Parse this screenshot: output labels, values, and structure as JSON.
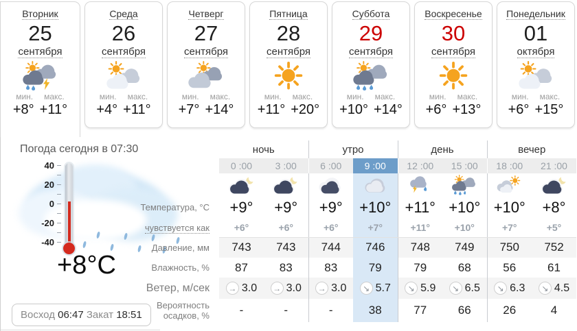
{
  "labels": {
    "min": "мин.",
    "max": "макс."
  },
  "days": [
    {
      "name": "Вторник",
      "date": "25",
      "month": "сентября",
      "icon": "sun-cloud-rain-storm",
      "min": "+8°",
      "max": "+11°"
    },
    {
      "name": "Среда",
      "date": "26",
      "month": "сентября",
      "icon": "sun-clouds",
      "min": "+4°",
      "max": "+11°"
    },
    {
      "name": "Четверг",
      "date": "27",
      "month": "сентября",
      "icon": "sun-behind-clouds",
      "min": "+7°",
      "max": "+14°"
    },
    {
      "name": "Пятница",
      "date": "28",
      "month": "сентября",
      "icon": "sun",
      "min": "+11°",
      "max": "+20°"
    },
    {
      "name": "Суббота",
      "date": "29",
      "month": "сентября",
      "icon": "sun-cloud-rain",
      "min": "+10°",
      "max": "+14°"
    },
    {
      "name": "Воскресенье",
      "date": "30",
      "month": "сентября",
      "icon": "sun",
      "min": "+6°",
      "max": "+13°"
    },
    {
      "name": "Понедельник",
      "date": "01",
      "month": "октября",
      "icon": "sun-clouds",
      "min": "+6°",
      "max": "+15°"
    }
  ],
  "today": {
    "title": "Погода сегодня в 07:30",
    "current_temp": "+8°C",
    "sunrise_label": "Восход",
    "sunrise_time": "06:47",
    "sunset_label": "Закат",
    "sunset_time": "18:51",
    "thermo_ticks": [
      "40",
      "20",
      "0",
      "-20",
      "-40"
    ]
  },
  "table": {
    "periods": [
      "ночь",
      "утро",
      "день",
      "вечер"
    ],
    "rows": {
      "temp": "Температура, °C",
      "feels": "чувствуется как",
      "pressure": "Давление, мм",
      "humidity": "Влажность, %",
      "wind": "Ветер, м/сек",
      "precip_line1": "Вероятность",
      "precip_line2": "осадков, %"
    },
    "hours": [
      {
        "time": "0 :00",
        "icon": "moon-cloud",
        "temp": "+9°",
        "feels": "+6°",
        "pressure": "743",
        "humidity": "87",
        "wind_dir": "→",
        "wind": "3.0",
        "precip": "-"
      },
      {
        "time": "3 :00",
        "icon": "moon-cloud",
        "temp": "+9°",
        "feels": "+6°",
        "pressure": "743",
        "humidity": "83",
        "wind_dir": "→",
        "wind": "3.0",
        "precip": "-"
      },
      {
        "time": "6 :00",
        "icon": "dark-cloud",
        "temp": "+9°",
        "feels": "+6°",
        "pressure": "744",
        "humidity": "83",
        "wind_dir": "→",
        "wind": "3.0",
        "precip": "-"
      },
      {
        "time": "9 :00",
        "icon": "cloud",
        "temp": "+10°",
        "feels": "+7°",
        "pressure": "746",
        "humidity": "79",
        "wind_dir": "↘",
        "wind": "5.7",
        "precip": "38"
      },
      {
        "time": "12 :00",
        "icon": "cloud-rain-storm",
        "temp": "+11°",
        "feels": "+11°",
        "pressure": "748",
        "humidity": "79",
        "wind_dir": "↘",
        "wind": "5.9",
        "precip": "77"
      },
      {
        "time": "15 :00",
        "icon": "sun-cloud-rain",
        "temp": "+10°",
        "feels": "+10°",
        "pressure": "749",
        "humidity": "68",
        "wind_dir": "↘",
        "wind": "6.5",
        "precip": "66"
      },
      {
        "time": "18 :00",
        "icon": "sun-cloud",
        "temp": "+10°",
        "feels": "+7°",
        "pressure": "750",
        "humidity": "56",
        "wind_dir": "↘",
        "wind": "6.3",
        "precip": "26"
      },
      {
        "time": "21 :00",
        "icon": "moon-cloud",
        "temp": "+8°",
        "feels": "+5°",
        "pressure": "752",
        "humidity": "61",
        "wind_dir": "↘",
        "wind": "4.5",
        "precip": "4"
      }
    ]
  }
}
